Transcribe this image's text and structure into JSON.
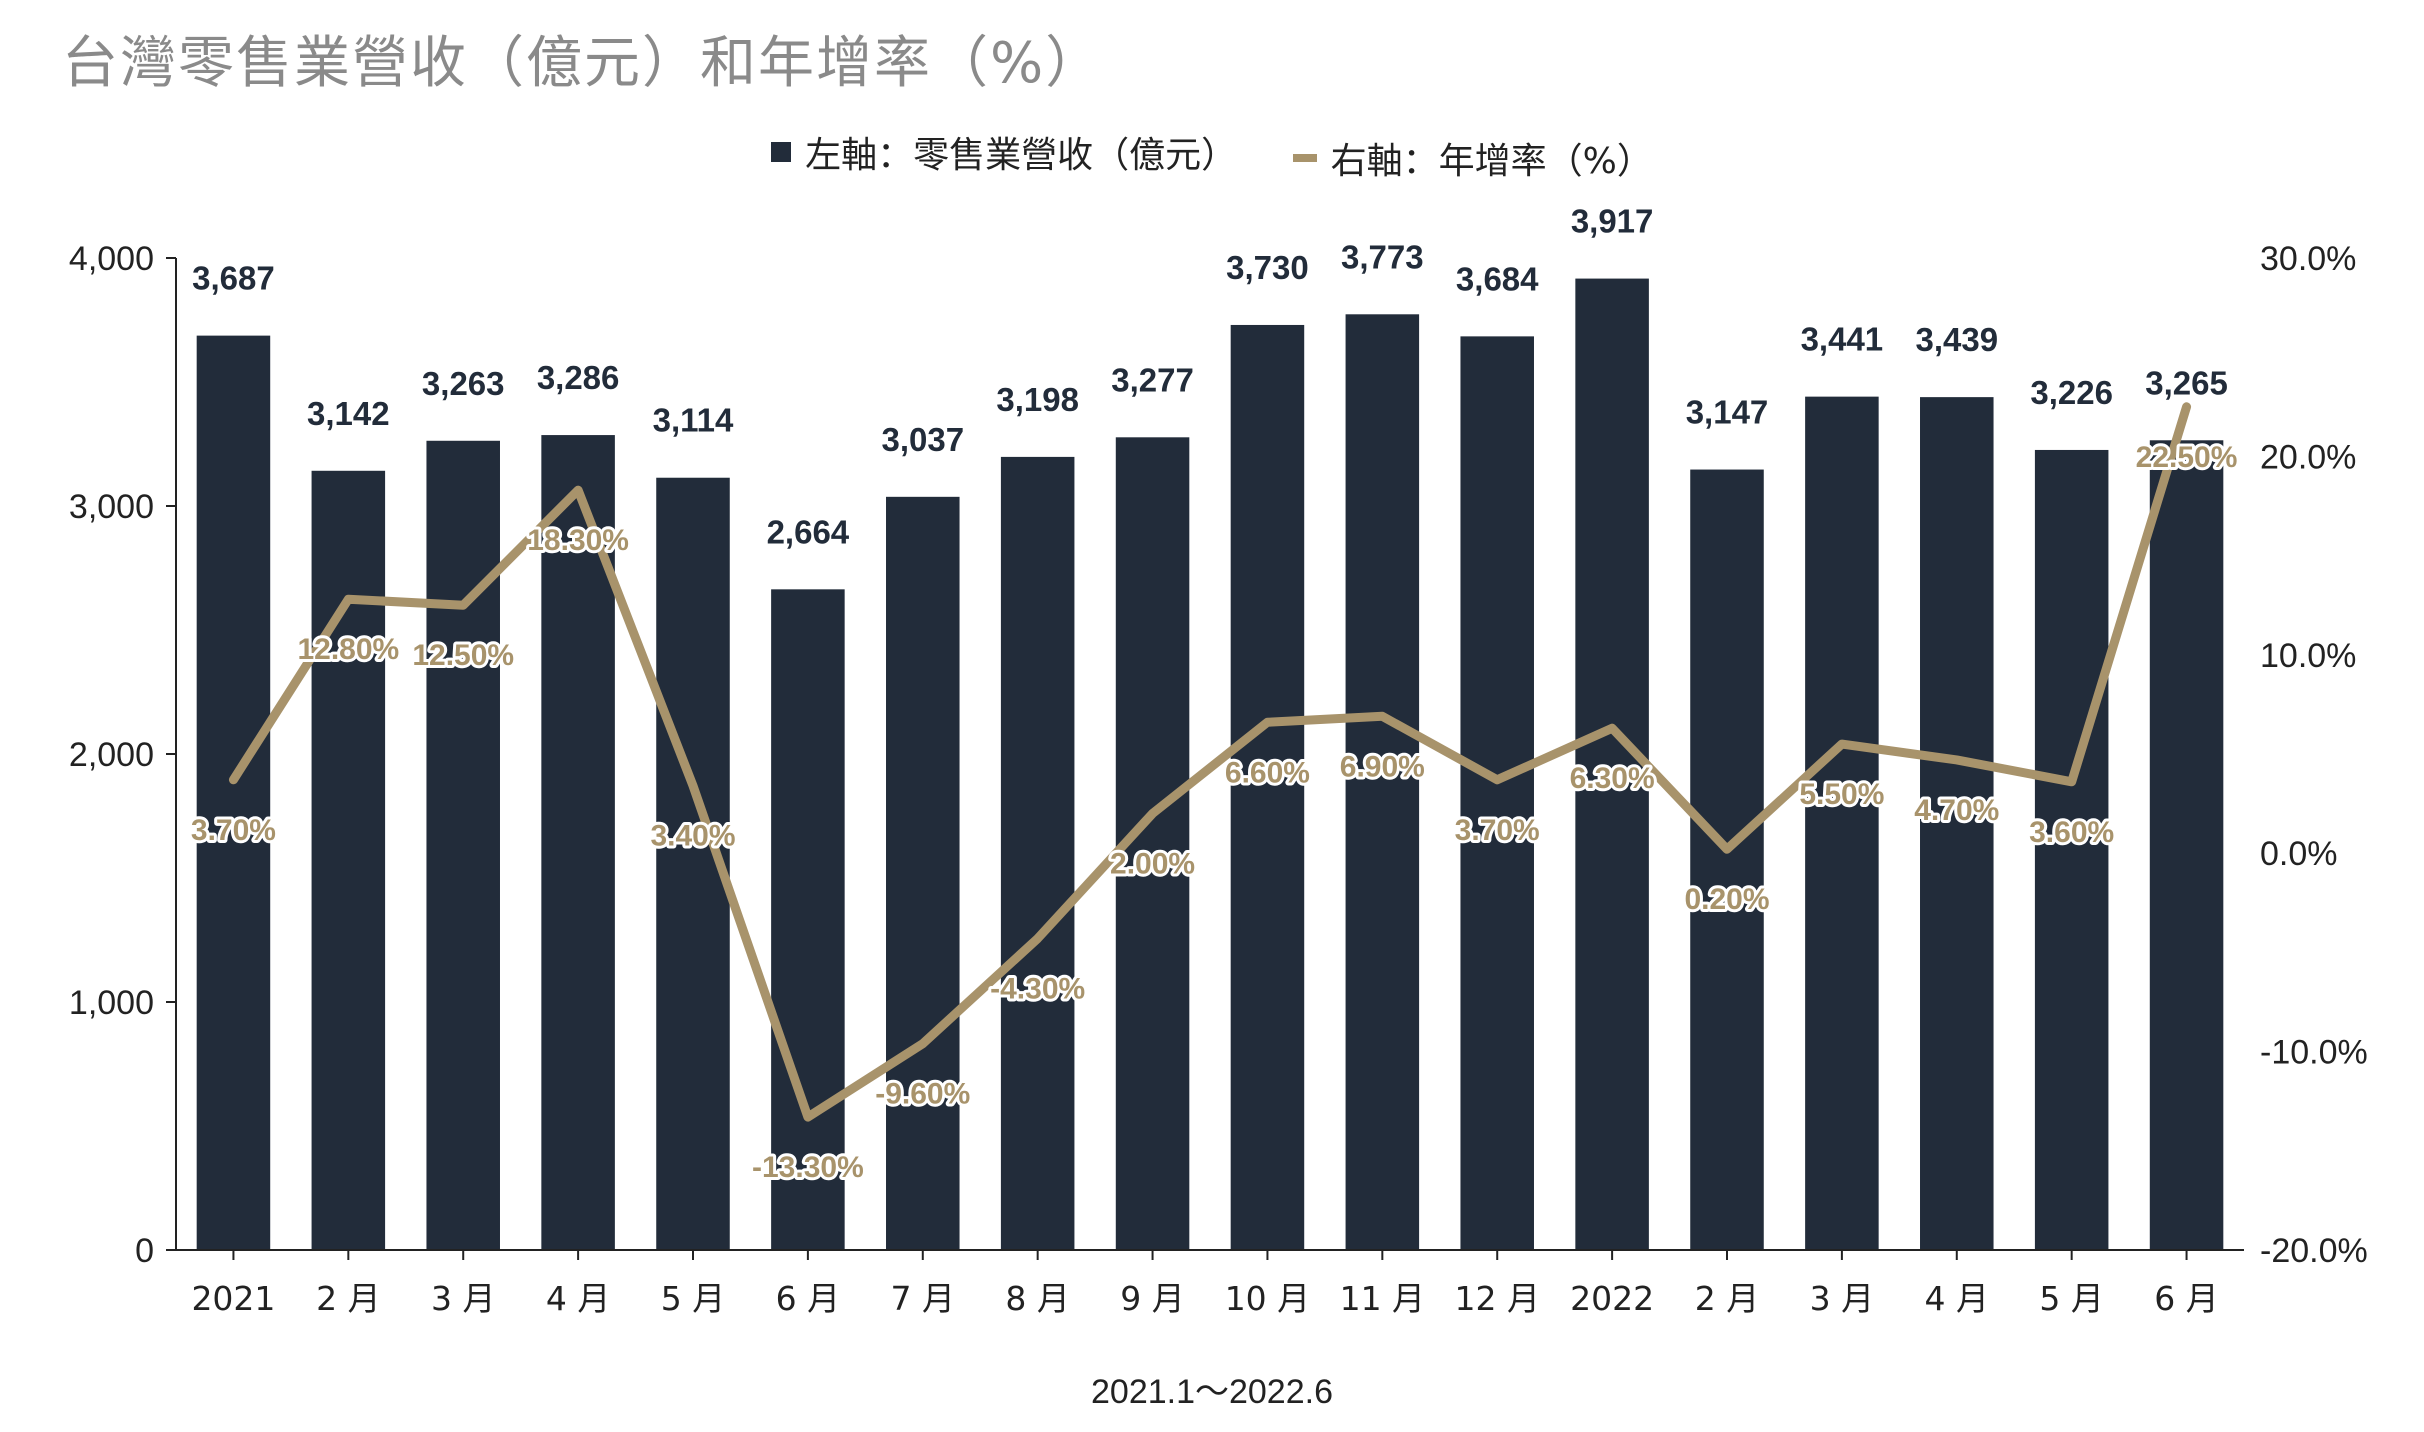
{
  "chart_data": {
    "type": "bar",
    "title": "台灣零售業營收（億元）和年增率（%）",
    "xlabel": "2021.1～2022.6",
    "categories": [
      "2021",
      "2 月",
      "3 月",
      "4 月",
      "5 月",
      "6 月",
      "7 月",
      "8 月",
      "9 月",
      "10 月",
      "11 月",
      "12 月",
      "2022",
      "2 月",
      "3 月",
      "4 月",
      "5 月",
      "6 月"
    ],
    "series": [
      {
        "name": "左軸：零售業營收（億元）",
        "type": "bar",
        "axis": "left",
        "color": "#222c3a",
        "values": [
          3687,
          3142,
          3263,
          3286,
          3114,
          2664,
          3037,
          3198,
          3277,
          3730,
          3773,
          3684,
          3917,
          3147,
          3441,
          3439,
          3226,
          3265
        ],
        "labels": [
          "3,687",
          "3,142",
          "3,263",
          "3,286",
          "3,114",
          "2,664",
          "3,037",
          "3,198",
          "3,277",
          "3,730",
          "3,773",
          "3,684",
          "3,917",
          "3,147",
          "3,441",
          "3,439",
          "3,226",
          "3,265"
        ]
      },
      {
        "name": "右軸：年增率（%）",
        "type": "line",
        "axis": "right",
        "color": "#a8936b",
        "values": [
          3.7,
          12.8,
          12.5,
          18.3,
          3.4,
          -13.3,
          -9.6,
          -4.3,
          2.0,
          6.6,
          6.9,
          3.7,
          6.3,
          0.2,
          5.5,
          4.7,
          3.6,
          22.5
        ],
        "labels": [
          "3.70%",
          "12.80%",
          "12.50%",
          "18.30%",
          "3.40%",
          "-13.30%",
          "-9.60%",
          "-4.30%",
          "2.00%",
          "6.60%",
          "6.90%",
          "3.70%",
          "6.30%",
          "0.20%",
          "5.50%",
          "4.70%",
          "3.60%",
          "22.50%"
        ]
      }
    ],
    "y_left": {
      "range": [
        0,
        4000
      ],
      "ticks": [
        "0",
        "1,000",
        "2,000",
        "3,000",
        "4,000"
      ]
    },
    "y_right": {
      "range": [
        -20,
        30
      ],
      "ticks": [
        "-20.0%",
        "-10.0%",
        "0.0%",
        "10.0%",
        "20.0%",
        "30.0%"
      ]
    },
    "legend_position": "top-center",
    "grid": false
  }
}
